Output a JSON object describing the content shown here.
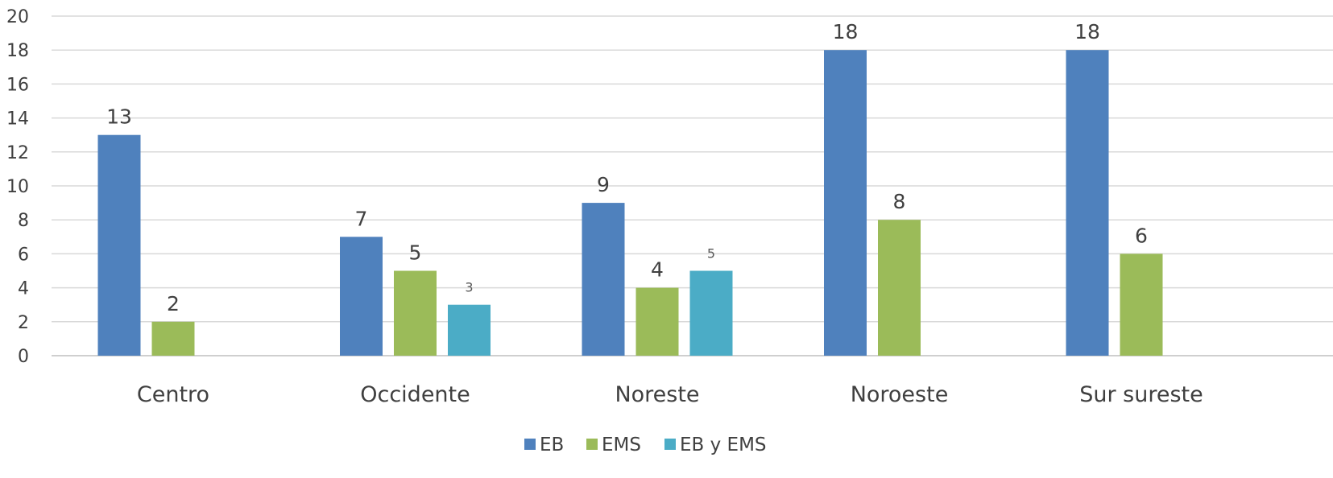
{
  "chart_data": {
    "type": "bar",
    "categories": [
      "Centro",
      "Occidente",
      "Noreste",
      "Noroeste",
      "Sur sureste"
    ],
    "series": [
      {
        "name": "EB",
        "values": [
          13,
          7,
          9,
          18,
          18
        ],
        "color": "#4F81BD"
      },
      {
        "name": "EMS",
        "values": [
          2,
          5,
          4,
          8,
          6
        ],
        "color": "#9BBB59"
      },
      {
        "name": "EB y EMS",
        "values": [
          null,
          3,
          5,
          null,
          null
        ],
        "color": "#4BACC6"
      }
    ],
    "title": "",
    "xlabel": "",
    "ylabel": "",
    "ylim": [
      0,
      20
    ],
    "yticks": [
      0,
      2,
      4,
      6,
      8,
      10,
      12,
      14,
      16,
      18,
      20
    ],
    "grid": true,
    "legend": "bottom-center",
    "data_labels": true
  }
}
